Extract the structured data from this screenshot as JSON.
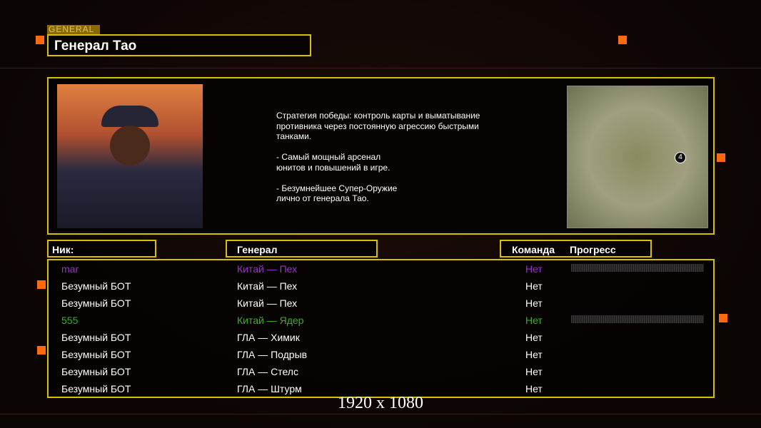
{
  "header": {
    "tag": "GENERAL",
    "title": "Генерал Тао"
  },
  "description": [
    "Стратегия победы: контроль карты и выматывание",
    "противника через постоянную агрессию быстрыми",
    "танками.",
    "",
    "- Самый мощный арсенал",
    "юнитов и повышений в игре.",
    "",
    "- Безумнейшее Супер-Оружие",
    "лично от генерала Тао."
  ],
  "map": {
    "player_marker": "4"
  },
  "columns": {
    "nick": "Ник:",
    "general": "Генерал",
    "team": "Команда",
    "progress": "Прогресс"
  },
  "players": [
    {
      "nick": "mar",
      "general": "Китай — Пех",
      "team": "Нет",
      "color": "#9a30d0",
      "progress": 0,
      "bar": true
    },
    {
      "nick": "Безумный БОТ",
      "general": "Китай — Пех",
      "team": "Нет",
      "color": "#ffffff",
      "bar": false
    },
    {
      "nick": "Безумный БОТ",
      "general": "Китай — Пех",
      "team": "Нет",
      "color": "#ffffff",
      "bar": false
    },
    {
      "nick": "555",
      "general": "Китай — Ядер",
      "team": "Нет",
      "color": "#3cb01c",
      "progress": 0,
      "bar": true
    },
    {
      "nick": "Безумный БОТ",
      "general": "ГЛА — Химик",
      "team": "Нет",
      "color": "#ffffff",
      "bar": false
    },
    {
      "nick": "Безумный БОТ",
      "general": "ГЛА — Подрыв",
      "team": "Нет",
      "color": "#ffffff",
      "bar": false
    },
    {
      "nick": "Безумный БОТ",
      "general": "ГЛА — Стелс",
      "team": "Нет",
      "color": "#ffffff",
      "bar": false
    },
    {
      "nick": "Безумный БОТ",
      "general": "ГЛА — Штурм",
      "team": "Нет",
      "color": "#ffffff",
      "bar": false
    }
  ],
  "resolution": "1920 x 1080"
}
